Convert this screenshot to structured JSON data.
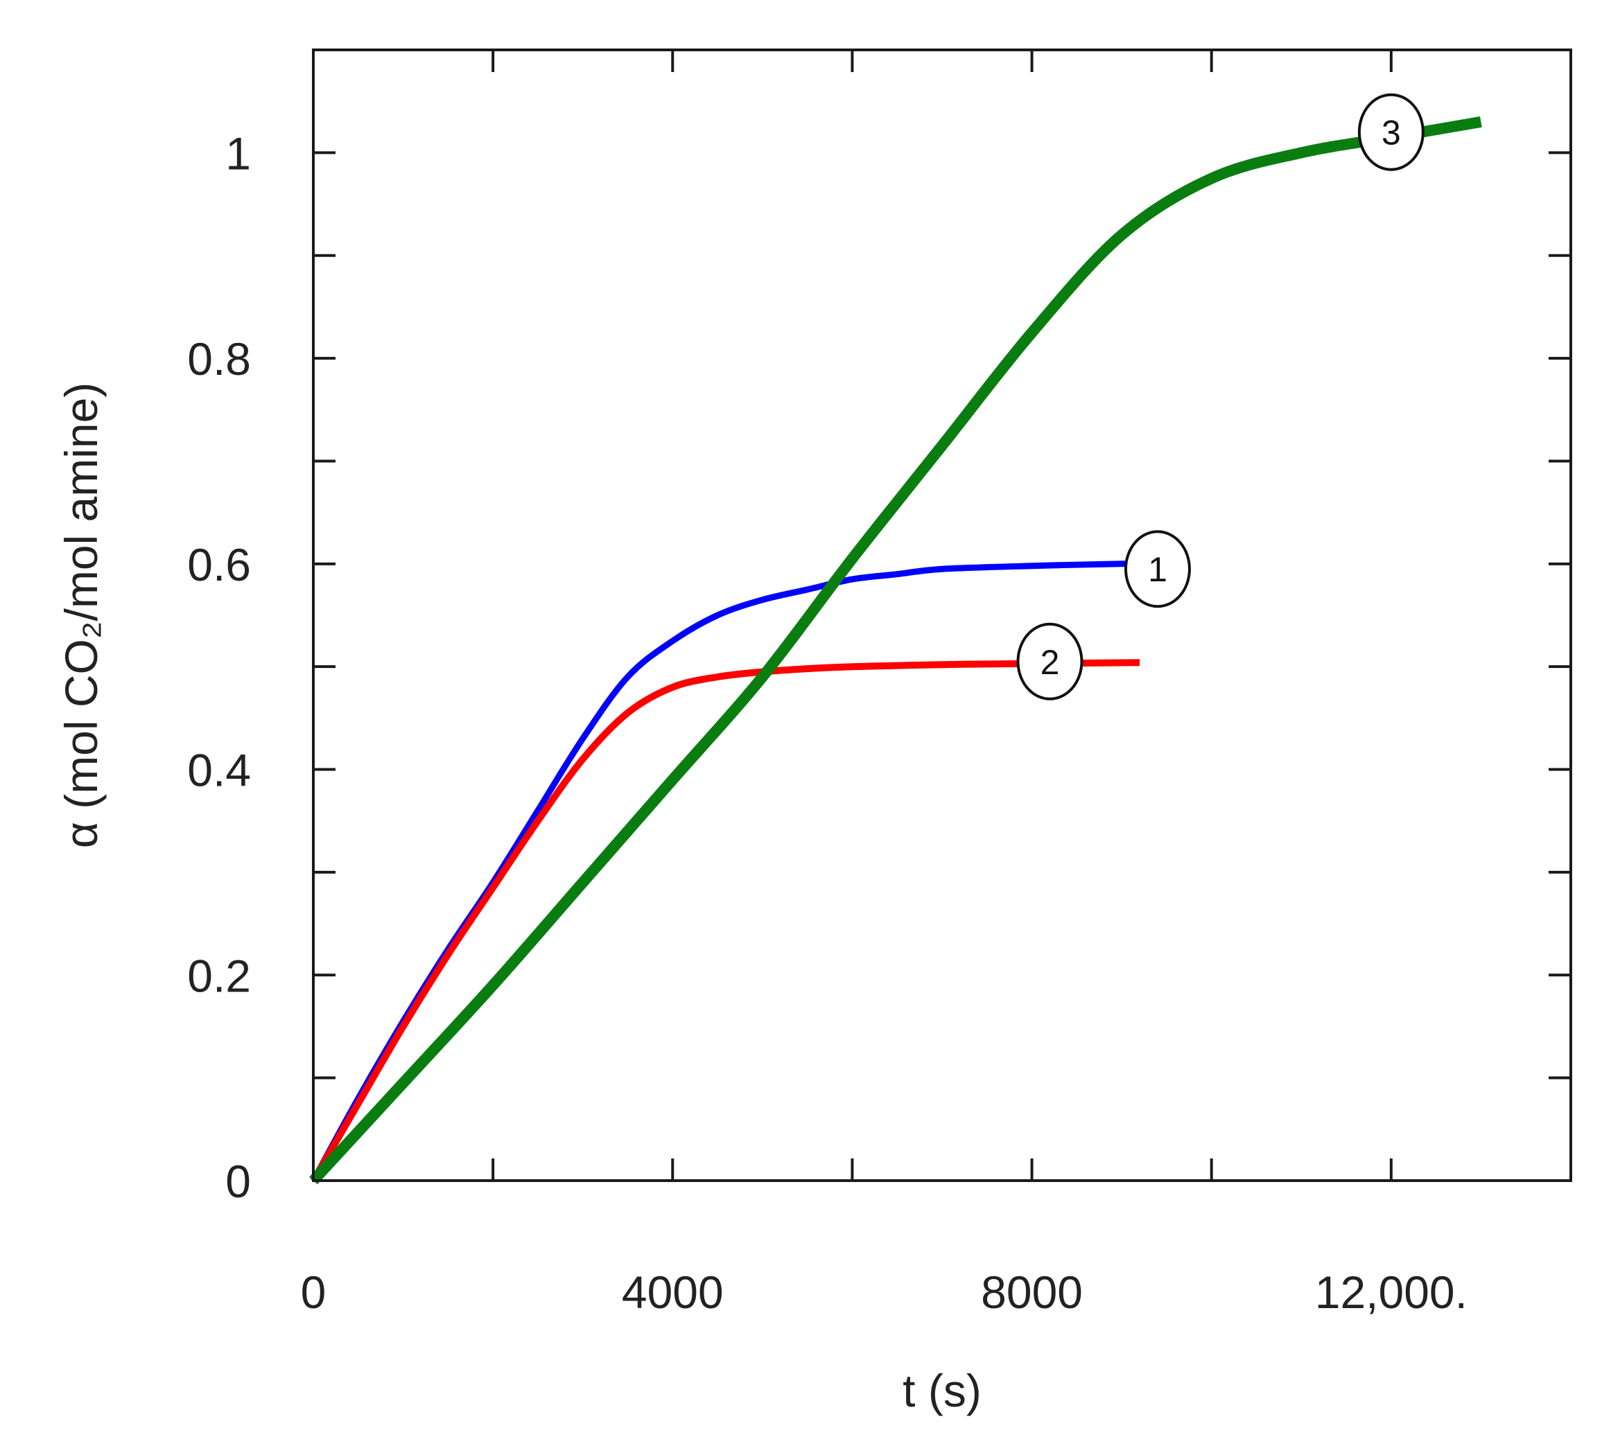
{
  "chart_data": {
    "type": "line",
    "xlabel": "t (s)",
    "ylabel": "α (mol CO₂/mol amine)",
    "xlim": [
      0,
      14000
    ],
    "ylim": [
      0,
      1.1
    ],
    "x_ticks": [
      {
        "value": 0,
        "label": "0"
      },
      {
        "value": 4000,
        "label": "4000"
      },
      {
        "value": 8000,
        "label": "8000"
      },
      {
        "value": 12000,
        "label": "12,000."
      }
    ],
    "x_minor_ticks": [
      2000,
      6000,
      10000
    ],
    "y_ticks": [
      {
        "value": 0,
        "label": "0"
      },
      {
        "value": 0.2,
        "label": "0.2"
      },
      {
        "value": 0.4,
        "label": "0.4"
      },
      {
        "value": 0.6,
        "label": "0.6"
      },
      {
        "value": 0.8,
        "label": "0.8"
      },
      {
        "value": 1,
        "label": "1"
      }
    ],
    "y_minor_ticks": [
      0.1,
      0.3,
      0.5,
      0.7,
      0.9
    ],
    "grid": false,
    "series": [
      {
        "label": "1",
        "color": "#0000ff",
        "x": [
          0,
          500,
          1000,
          1500,
          2000,
          2500,
          3000,
          3500,
          4000,
          4500,
          5000,
          5500,
          6000,
          6500,
          7000,
          8000,
          9000,
          9700
        ],
        "y": [
          0,
          0.08,
          0.155,
          0.225,
          0.29,
          0.36,
          0.43,
          0.49,
          0.525,
          0.55,
          0.565,
          0.575,
          0.585,
          0.59,
          0.595,
          0.598,
          0.6,
          0.6
        ],
        "marker_at": [
          9400,
          0.595
        ]
      },
      {
        "label": "2",
        "color": "#ff0000",
        "x": [
          0,
          500,
          1000,
          1500,
          2000,
          2500,
          3000,
          3500,
          4000,
          4500,
          5000,
          5500,
          6000,
          7000,
          8000,
          9200
        ],
        "y": [
          0,
          0.075,
          0.15,
          0.22,
          0.285,
          0.35,
          0.41,
          0.455,
          0.48,
          0.49,
          0.495,
          0.498,
          0.5,
          0.502,
          0.503,
          0.504
        ],
        "marker_at": [
          8200,
          0.505
        ]
      },
      {
        "label": "3",
        "color": "#0a7d10",
        "x": [
          0,
          1000,
          2000,
          3000,
          4000,
          5000,
          6000,
          7000,
          8000,
          9000,
          10000,
          11000,
          12000,
          13000
        ],
        "y": [
          0,
          0.095,
          0.19,
          0.29,
          0.39,
          0.49,
          0.605,
          0.715,
          0.825,
          0.92,
          0.975,
          1.0,
          1.015,
          1.03
        ],
        "marker_at": [
          12000,
          1.02
        ]
      }
    ]
  }
}
